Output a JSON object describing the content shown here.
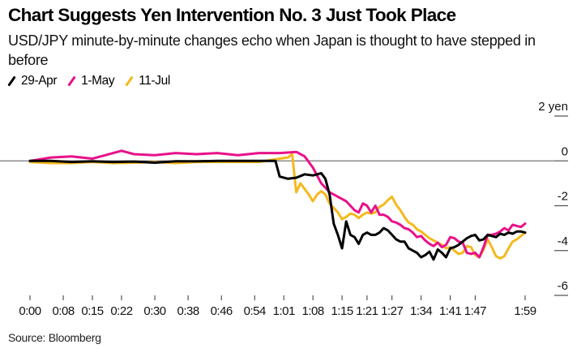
{
  "header": {
    "title": "Chart Suggests Yen Intervention No. 3 Just Took Place",
    "subtitle": "USD/JPY minute-by-minute changes echo when Japan is thought to have stepped in before"
  },
  "footer": {
    "source": "Source: Bloomberg"
  },
  "chart_data": {
    "type": "line",
    "title": "Chart Suggests Yen Intervention No. 3 Just Took Place",
    "subtitle": "USD/JPY minute-by-minute changes echo when Japan is thought to have stepped in before",
    "xlabel": "",
    "ylabel": "yen",
    "x_unit": "minutes elapsed",
    "xlim": [
      0,
      119
    ],
    "ylim": [
      -6,
      2
    ],
    "y_ticks": [
      2,
      0,
      -2,
      -4,
      -6
    ],
    "y_tick_labels": [
      "2 yen",
      "0",
      "-2",
      "-4",
      "-6"
    ],
    "y_axis_side": "right",
    "x_ticks": [
      0,
      8,
      15,
      22,
      30,
      38,
      46,
      54,
      61,
      68,
      75,
      81,
      87,
      94,
      101,
      107,
      119
    ],
    "x_tick_labels": [
      "0:00",
      "0:08",
      "0:15",
      "0:22",
      "0:30",
      "0:38",
      "0:46",
      "0:54",
      "1:01",
      "1:08",
      "1:15",
      "1:21",
      "1:27",
      "1:34",
      "1:41",
      "1:47",
      "1:59"
    ],
    "zero_line": true,
    "grid": false,
    "legend_position": "top-left",
    "series": [
      {
        "name": "29-Apr",
        "color": "#000000",
        "x": [
          0,
          5,
          10,
          15,
          20,
          25,
          30,
          35,
          40,
          45,
          50,
          55,
          59,
          60,
          62,
          64,
          66,
          68,
          70,
          71,
          72,
          73,
          74,
          75,
          76,
          77,
          78,
          79,
          80,
          81,
          82,
          83,
          84,
          85,
          86,
          87,
          88,
          89,
          90,
          91,
          92,
          93,
          94,
          95,
          96,
          97,
          98,
          99,
          100,
          101,
          102,
          103,
          104,
          105,
          106,
          107,
          108,
          109,
          110,
          111,
          112,
          113,
          114,
          115,
          116,
          117,
          118,
          119
        ],
        "values": [
          0.0,
          0.0,
          -0.05,
          -0.02,
          -0.05,
          -0.03,
          -0.08,
          -0.02,
          -0.02,
          -0.0,
          0.0,
          0.0,
          0.0,
          -0.7,
          -0.8,
          -0.75,
          -0.6,
          -0.65,
          -0.55,
          -0.8,
          -1.5,
          -2.8,
          -3.3,
          -3.9,
          -2.7,
          -3.3,
          -3.4,
          -3.7,
          -3.3,
          -3.2,
          -3.3,
          -3.3,
          -3.2,
          -3.0,
          -3.1,
          -3.3,
          -3.5,
          -3.6,
          -3.6,
          -3.9,
          -4.0,
          -4.1,
          -4.3,
          -4.2,
          -4.05,
          -4.4,
          -3.95,
          -4.1,
          -4.3,
          -3.9,
          -3.85,
          -3.75,
          -3.6,
          -3.45,
          -3.35,
          -3.3,
          -3.55,
          -3.5,
          -3.3,
          -3.35,
          -3.4,
          -3.25,
          -3.3,
          -3.2,
          -3.25,
          -3.15,
          -3.15,
          -3.2
        ]
      },
      {
        "name": "1-May",
        "color": "#e8118a",
        "x": [
          0,
          5,
          10,
          15,
          20,
          22,
          25,
          30,
          35,
          40,
          45,
          50,
          55,
          60,
          64,
          66,
          68,
          70,
          72,
          74,
          76,
          78,
          79,
          80,
          81,
          82,
          83,
          84,
          85,
          86,
          87,
          88,
          89,
          90,
          91,
          92,
          93,
          94,
          95,
          96,
          97,
          98,
          99,
          100,
          101,
          102,
          103,
          104,
          105,
          106,
          107,
          108,
          109,
          110,
          111,
          112,
          113,
          114,
          115,
          116,
          117,
          118,
          119
        ],
        "values": [
          0.0,
          0.15,
          0.2,
          0.1,
          0.35,
          0.45,
          0.3,
          0.25,
          0.35,
          0.3,
          0.35,
          0.25,
          0.35,
          0.35,
          0.4,
          0.2,
          -0.3,
          -1.0,
          -1.4,
          -1.6,
          -1.8,
          -2.2,
          -2.3,
          -1.9,
          -2.0,
          -2.3,
          -2.0,
          -2.4,
          -2.4,
          -2.5,
          -2.7,
          -2.75,
          -2.85,
          -3.0,
          -3.05,
          -3.2,
          -3.4,
          -3.35,
          -3.55,
          -3.7,
          -3.8,
          -3.65,
          -3.85,
          -3.75,
          -3.4,
          -3.45,
          -3.6,
          -3.65,
          -4.1,
          -4.15,
          -4.1,
          -4.3,
          -3.85,
          -3.3,
          -3.3,
          -3.25,
          -3.15,
          -3.0,
          -3.1,
          -2.85,
          -2.9,
          -2.95,
          -2.8
        ]
      },
      {
        "name": "11-Jul",
        "color": "#f5b91e",
        "x": [
          0,
          5,
          10,
          15,
          20,
          25,
          30,
          35,
          40,
          45,
          50,
          55,
          60,
          62,
          63,
          64,
          65,
          66,
          67,
          68,
          69,
          70,
          71,
          72,
          73,
          74,
          75,
          76,
          77,
          78,
          79,
          80,
          81,
          82,
          83,
          84,
          85,
          86,
          87,
          88,
          89,
          90,
          91,
          92,
          93,
          94,
          95,
          96,
          97,
          98,
          99,
          100,
          101,
          102,
          103,
          104,
          105,
          106,
          107,
          108,
          109,
          110,
          111,
          112,
          113,
          114,
          115,
          116,
          117,
          118,
          119
        ],
        "values": [
          -0.05,
          -0.1,
          -0.1,
          -0.05,
          -0.1,
          -0.08,
          -0.05,
          -0.1,
          -0.05,
          -0.05,
          -0.05,
          -0.05,
          0.1,
          0.15,
          0.3,
          -1.4,
          -1.0,
          -1.25,
          -1.5,
          -1.8,
          -1.5,
          -1.35,
          -1.5,
          -1.9,
          -2.1,
          -2.3,
          -2.6,
          -2.5,
          -2.35,
          -2.4,
          -2.55,
          -2.4,
          -2.3,
          -2.35,
          -2.3,
          -2.05,
          -1.95,
          -1.75,
          -1.6,
          -1.95,
          -2.2,
          -2.5,
          -2.75,
          -2.85,
          -3.05,
          -3.15,
          -3.3,
          -3.45,
          -3.55,
          -3.65,
          -3.75,
          -3.9,
          -3.85,
          -4.0,
          -4.15,
          -4.1,
          -3.8,
          -3.85,
          -4.2,
          -4.3,
          -3.95,
          -3.5,
          -3.85,
          -4.25,
          -4.35,
          -4.25,
          -3.9,
          -3.6,
          -3.5,
          -3.35,
          -3.2
        ]
      }
    ]
  }
}
